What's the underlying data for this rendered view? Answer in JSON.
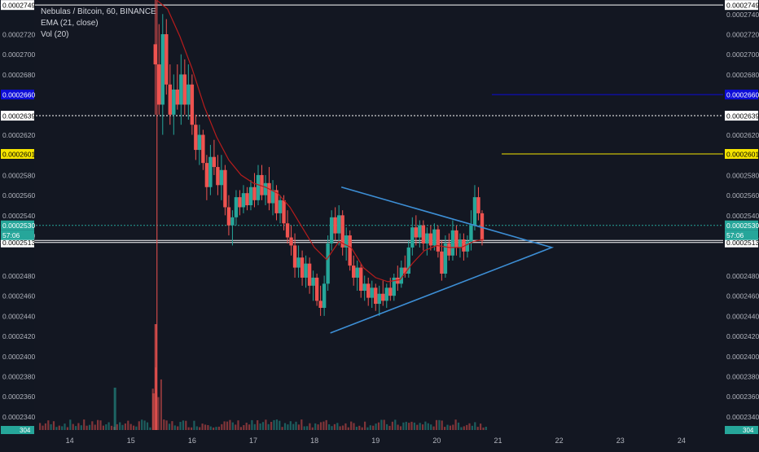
{
  "header": {
    "symbol_line": "Nebulas / Bitcoin, 60, BINANCE",
    "ema_line": "EMA (21, close)",
    "vol_line": "Vol (20)"
  },
  "colors": {
    "background": "#131722",
    "up": "#26a69a",
    "down": "#ef5350",
    "ema": "#b71c1c",
    "triangle": "#3d8fd6",
    "blue_level": "#0c0cd8",
    "yellow_level": "#f5e400",
    "last_price": "#ef0000",
    "teal_price": "#26a69a"
  },
  "chart_data": {
    "type": "candlestick",
    "title": "Nebulas / Bitcoin, 60, BINANCE",
    "ylim": [
      0.0002329,
      0.0002754
    ],
    "y_ticks_left": [
      "0.0002749",
      "0.0002720",
      "0.0002700",
      "0.0002680",
      "0.0002660",
      "0.0002639",
      "0.0002620",
      "0.0002601",
      "0.0002580",
      "0.0002560",
      "0.0002540",
      "0.0002530",
      "0.0002520",
      "0.0002515",
      "0.0002513",
      "0.0002480",
      "0.0002460",
      "0.0002440",
      "0.0002420",
      "0.0002400",
      "0.0002380",
      "0.0002360",
      "0.0002340"
    ],
    "y_ticks_right": [
      "0.0002749",
      "0.0002740",
      "0.0002720",
      "0.0002700",
      "0.0002680",
      "0.0002660",
      "0.0002639",
      "0.0002620",
      "0.0002601",
      "0.0002580",
      "0.0002560",
      "0.0002540",
      "0.0002530",
      "0.0002515",
      "0.0002513",
      "0.0002480",
      "0.0002460",
      "0.0002440",
      "0.0002420",
      "0.0002400",
      "0.0002380",
      "0.0002360",
      "0.0002340"
    ],
    "x_ticks": [
      {
        "label": "14",
        "day": 14
      },
      {
        "label": "15",
        "day": 15
      },
      {
        "label": "16",
        "day": 16
      },
      {
        "label": "17",
        "day": 17
      },
      {
        "label": "18",
        "day": 18
      },
      {
        "label": "19",
        "day": 19
      },
      {
        "label": "20",
        "day": 20
      },
      {
        "label": "21",
        "day": 21
      },
      {
        "label": "22",
        "day": 22
      },
      {
        "label": "23",
        "day": 23
      },
      {
        "label": "24",
        "day": 24
      }
    ],
    "x_range_days": [
      13.42,
      24.68
    ],
    "horizontal_levels": [
      {
        "price": 0.0002749,
        "label": "0.0002749",
        "style": "white-solid"
      },
      {
        "price": 0.000266,
        "label": "0.0002660",
        "style": "blue",
        "start_day": 20.9
      },
      {
        "price": 0.0002639,
        "label": "0.0002639",
        "style": "white-dotted"
      },
      {
        "price": 0.0002601,
        "label": "0.0002601",
        "style": "yellow",
        "start_day": 21.06
      },
      {
        "price": 0.000253,
        "label": "0.0002530",
        "style": "teal-dotted",
        "countdown": "57:06"
      },
      {
        "price": 0.0002515,
        "label": "0.0002515",
        "style": "last-price"
      },
      {
        "price": 0.0002513,
        "label": "0.0002513",
        "style": "white-solid"
      }
    ],
    "triangle": {
      "upper_start": {
        "day": 18.44,
        "price": 0.0002568
      },
      "lower_start": {
        "day": 18.26,
        "price": 0.0002423
      },
      "apex": {
        "day": 21.88,
        "price": 0.0002508
      }
    },
    "volume_label": "304",
    "ohlc": [
      {
        "d": 15.4,
        "o": 0.000271,
        "h": 0.000276,
        "l": 0.000264,
        "c": 0.000269
      },
      {
        "d": 15.46,
        "o": 0.000269,
        "h": 0.000273,
        "l": 0.000264,
        "c": 0.000265
      },
      {
        "d": 15.52,
        "o": 0.000265,
        "h": 0.000274,
        "l": 0.000262,
        "c": 0.000272
      },
      {
        "d": 15.58,
        "o": 0.000272,
        "h": 0.0002735,
        "l": 0.000266,
        "c": 0.000267
      },
      {
        "d": 15.64,
        "o": 0.000267,
        "h": 0.000269,
        "l": 0.000263,
        "c": 0.000264
      },
      {
        "d": 15.7,
        "o": 0.000264,
        "h": 0.000268,
        "l": 0.000262,
        "c": 0.0002665
      },
      {
        "d": 15.76,
        "o": 0.0002665,
        "h": 0.000269,
        "l": 0.0002645,
        "c": 0.000265
      },
      {
        "d": 15.82,
        "o": 0.000265,
        "h": 0.00027,
        "l": 0.000263,
        "c": 0.000268
      },
      {
        "d": 15.88,
        "o": 0.000268,
        "h": 0.0002695,
        "l": 0.000264,
        "c": 0.000265
      },
      {
        "d": 15.94,
        "o": 0.000265,
        "h": 0.000269,
        "l": 0.0002635,
        "c": 0.000267
      },
      {
        "d": 16.0,
        "o": 0.000267,
        "h": 0.000268,
        "l": 0.000262,
        "c": 0.000263
      },
      {
        "d": 16.06,
        "o": 0.000263,
        "h": 0.000264,
        "l": 0.0002595,
        "c": 0.0002605
      },
      {
        "d": 16.12,
        "o": 0.0002605,
        "h": 0.000263,
        "l": 0.000259,
        "c": 0.000262
      },
      {
        "d": 16.18,
        "o": 0.000262,
        "h": 0.0002625,
        "l": 0.0002585,
        "c": 0.0002592
      },
      {
        "d": 16.24,
        "o": 0.0002592,
        "h": 0.00026,
        "l": 0.0002555,
        "c": 0.0002568
      },
      {
        "d": 16.3,
        "o": 0.0002568,
        "h": 0.000261,
        "l": 0.000256,
        "c": 0.0002598
      },
      {
        "d": 16.36,
        "o": 0.0002598,
        "h": 0.0002615,
        "l": 0.000258,
        "c": 0.0002588
      },
      {
        "d": 16.42,
        "o": 0.0002588,
        "h": 0.00026,
        "l": 0.000256,
        "c": 0.000257
      },
      {
        "d": 16.48,
        "o": 0.000257,
        "h": 0.00026,
        "l": 0.0002555,
        "c": 0.0002585
      },
      {
        "d": 16.54,
        "o": 0.0002585,
        "h": 0.000259,
        "l": 0.000254,
        "c": 0.0002548
      },
      {
        "d": 16.6,
        "o": 0.0002548,
        "h": 0.000256,
        "l": 0.000252,
        "c": 0.000253
      },
      {
        "d": 16.66,
        "o": 0.000253,
        "h": 0.0002545,
        "l": 0.000251,
        "c": 0.0002538
      },
      {
        "d": 16.72,
        "o": 0.0002538,
        "h": 0.0002565,
        "l": 0.000253,
        "c": 0.0002558
      },
      {
        "d": 16.78,
        "o": 0.0002558,
        "h": 0.0002565,
        "l": 0.000254,
        "c": 0.0002548
      },
      {
        "d": 16.84,
        "o": 0.0002548,
        "h": 0.000257,
        "l": 0.0002542,
        "c": 0.0002562
      },
      {
        "d": 16.9,
        "o": 0.0002562,
        "h": 0.0002568,
        "l": 0.0002545,
        "c": 0.000255
      },
      {
        "d": 16.96,
        "o": 0.000255,
        "h": 0.0002575,
        "l": 0.0002545,
        "c": 0.0002568
      },
      {
        "d": 17.02,
        "o": 0.0002568,
        "h": 0.0002582,
        "l": 0.0002548,
        "c": 0.0002555
      },
      {
        "d": 17.08,
        "o": 0.0002555,
        "h": 0.000259,
        "l": 0.000255,
        "c": 0.000258
      },
      {
        "d": 17.14,
        "o": 0.000258,
        "h": 0.000259,
        "l": 0.0002555,
        "c": 0.000256
      },
      {
        "d": 17.2,
        "o": 0.000256,
        "h": 0.000258,
        "l": 0.000255,
        "c": 0.0002572
      },
      {
        "d": 17.26,
        "o": 0.0002572,
        "h": 0.0002588,
        "l": 0.0002545,
        "c": 0.0002552
      },
      {
        "d": 17.32,
        "o": 0.0002552,
        "h": 0.0002575,
        "l": 0.000254,
        "c": 0.0002565
      },
      {
        "d": 17.38,
        "o": 0.0002565,
        "h": 0.000257,
        "l": 0.0002535,
        "c": 0.0002542
      },
      {
        "d": 17.44,
        "o": 0.0002542,
        "h": 0.000256,
        "l": 0.0002532,
        "c": 0.0002555
      },
      {
        "d": 17.5,
        "o": 0.0002555,
        "h": 0.000256,
        "l": 0.0002525,
        "c": 0.0002532
      },
      {
        "d": 17.56,
        "o": 0.0002532,
        "h": 0.0002545,
        "l": 0.0002512,
        "c": 0.0002518
      },
      {
        "d": 17.62,
        "o": 0.0002518,
        "h": 0.000253,
        "l": 0.00025,
        "c": 0.000251
      },
      {
        "d": 17.68,
        "o": 0.000251,
        "h": 0.0002522,
        "l": 0.0002478,
        "c": 0.0002488
      },
      {
        "d": 17.74,
        "o": 0.0002488,
        "h": 0.000251,
        "l": 0.0002478,
        "c": 0.0002498
      },
      {
        "d": 17.8,
        "o": 0.0002498,
        "h": 0.0002505,
        "l": 0.000247,
        "c": 0.0002478
      },
      {
        "d": 17.86,
        "o": 0.0002478,
        "h": 0.00025,
        "l": 0.0002468,
        "c": 0.0002492
      },
      {
        "d": 17.92,
        "o": 0.0002492,
        "h": 0.0002498,
        "l": 0.0002462,
        "c": 0.000247
      },
      {
        "d": 17.98,
        "o": 0.000247,
        "h": 0.0002485,
        "l": 0.0002455,
        "c": 0.0002478
      },
      {
        "d": 18.04,
        "o": 0.0002478,
        "h": 0.0002482,
        "l": 0.000245,
        "c": 0.0002455
      },
      {
        "d": 18.1,
        "o": 0.0002455,
        "h": 0.000247,
        "l": 0.000244,
        "c": 0.0002448
      },
      {
        "d": 18.16,
        "o": 0.0002448,
        "h": 0.000248,
        "l": 0.000244,
        "c": 0.0002472
      },
      {
        "d": 18.22,
        "o": 0.0002472,
        "h": 0.000252,
        "l": 0.0002465,
        "c": 0.0002512
      },
      {
        "d": 18.28,
        "o": 0.0002512,
        "h": 0.0002545,
        "l": 0.0002505,
        "c": 0.0002538
      },
      {
        "d": 18.34,
        "o": 0.0002538,
        "h": 0.0002548,
        "l": 0.0002515,
        "c": 0.0002522
      },
      {
        "d": 18.4,
        "o": 0.0002522,
        "h": 0.000255,
        "l": 0.000251,
        "c": 0.000254
      },
      {
        "d": 18.46,
        "o": 0.000254,
        "h": 0.0002545,
        "l": 0.00025,
        "c": 0.0002508
      },
      {
        "d": 18.52,
        "o": 0.0002508,
        "h": 0.0002528,
        "l": 0.0002495,
        "c": 0.000252
      },
      {
        "d": 18.58,
        "o": 0.000252,
        "h": 0.0002525,
        "l": 0.0002485,
        "c": 0.000249
      },
      {
        "d": 18.64,
        "o": 0.000249,
        "h": 0.00025,
        "l": 0.000247,
        "c": 0.0002478
      },
      {
        "d": 18.7,
        "o": 0.0002478,
        "h": 0.0002495,
        "l": 0.0002465,
        "c": 0.0002488
      },
      {
        "d": 18.76,
        "o": 0.0002488,
        "h": 0.0002492,
        "l": 0.0002458,
        "c": 0.0002465
      },
      {
        "d": 18.82,
        "o": 0.0002465,
        "h": 0.000248,
        "l": 0.0002455,
        "c": 0.0002472
      },
      {
        "d": 18.88,
        "o": 0.0002472,
        "h": 0.0002478,
        "l": 0.000245,
        "c": 0.0002458
      },
      {
        "d": 18.94,
        "o": 0.0002458,
        "h": 0.0002475,
        "l": 0.0002448,
        "c": 0.0002468
      },
      {
        "d": 19.0,
        "o": 0.0002468,
        "h": 0.0002472,
        "l": 0.0002445,
        "c": 0.0002452
      },
      {
        "d": 19.06,
        "o": 0.0002452,
        "h": 0.000247,
        "l": 0.000244,
        "c": 0.0002462
      },
      {
        "d": 19.12,
        "o": 0.0002462,
        "h": 0.0002475,
        "l": 0.000245,
        "c": 0.0002455
      },
      {
        "d": 19.18,
        "o": 0.0002455,
        "h": 0.0002472,
        "l": 0.0002448,
        "c": 0.0002468
      },
      {
        "d": 19.24,
        "o": 0.0002468,
        "h": 0.0002478,
        "l": 0.0002455,
        "c": 0.000246
      },
      {
        "d": 19.3,
        "o": 0.000246,
        "h": 0.0002482,
        "l": 0.0002455,
        "c": 0.0002478
      },
      {
        "d": 19.36,
        "o": 0.0002478,
        "h": 0.000249,
        "l": 0.0002465,
        "c": 0.0002472
      },
      {
        "d": 19.42,
        "o": 0.0002472,
        "h": 0.0002495,
        "l": 0.0002468,
        "c": 0.0002488
      },
      {
        "d": 19.48,
        "o": 0.0002488,
        "h": 0.00025,
        "l": 0.0002478,
        "c": 0.0002482
      },
      {
        "d": 19.54,
        "o": 0.0002482,
        "h": 0.0002515,
        "l": 0.0002478,
        "c": 0.0002508
      },
      {
        "d": 19.6,
        "o": 0.0002508,
        "h": 0.0002538,
        "l": 0.00025,
        "c": 0.0002528
      },
      {
        "d": 19.66,
        "o": 0.0002528,
        "h": 0.000254,
        "l": 0.000251,
        "c": 0.0002518
      },
      {
        "d": 19.72,
        "o": 0.0002518,
        "h": 0.0002535,
        "l": 0.0002508,
        "c": 0.000253
      },
      {
        "d": 19.78,
        "o": 0.000253,
        "h": 0.0002535,
        "l": 0.0002505,
        "c": 0.0002512
      },
      {
        "d": 19.84,
        "o": 0.0002512,
        "h": 0.0002528,
        "l": 0.00025,
        "c": 0.0002522
      },
      {
        "d": 19.9,
        "o": 0.0002522,
        "h": 0.000253,
        "l": 0.0002505,
        "c": 0.000251
      },
      {
        "d": 19.96,
        "o": 0.000251,
        "h": 0.0002532,
        "l": 0.0002505,
        "c": 0.0002526
      },
      {
        "d": 20.02,
        "o": 0.0002526,
        "h": 0.000253,
        "l": 0.0002498,
        "c": 0.0002504
      },
      {
        "d": 20.08,
        "o": 0.0002504,
        "h": 0.0002515,
        "l": 0.0002475,
        "c": 0.0002482
      },
      {
        "d": 20.14,
        "o": 0.0002482,
        "h": 0.000252,
        "l": 0.0002478,
        "c": 0.0002512
      },
      {
        "d": 20.2,
        "o": 0.0002512,
        "h": 0.0002522,
        "l": 0.0002495,
        "c": 0.00025
      },
      {
        "d": 20.26,
        "o": 0.00025,
        "h": 0.0002535,
        "l": 0.0002495,
        "c": 0.0002525
      },
      {
        "d": 20.32,
        "o": 0.0002525,
        "h": 0.000253,
        "l": 0.00025,
        "c": 0.0002508
      },
      {
        "d": 20.38,
        "o": 0.0002508,
        "h": 0.0002522,
        "l": 0.0002498,
        "c": 0.0002516
      },
      {
        "d": 20.44,
        "o": 0.0002516,
        "h": 0.0002522,
        "l": 0.0002495,
        "c": 0.0002504
      },
      {
        "d": 20.5,
        "o": 0.0002504,
        "h": 0.000252,
        "l": 0.0002498,
        "c": 0.0002514
      },
      {
        "d": 20.56,
        "o": 0.0002514,
        "h": 0.0002545,
        "l": 0.0002505,
        "c": 0.000253
      },
      {
        "d": 20.62,
        "o": 0.000253,
        "h": 0.000257,
        "l": 0.0002525,
        "c": 0.0002558
      },
      {
        "d": 20.68,
        "o": 0.0002558,
        "h": 0.0002568,
        "l": 0.0002535,
        "c": 0.0002542
      },
      {
        "d": 20.74,
        "o": 0.0002542,
        "h": 0.0002545,
        "l": 0.000251,
        "c": 0.0002515
      }
    ],
    "ema21": [
      [
        15.4,
        0.0002755
      ],
      [
        15.6,
        0.0002745
      ],
      [
        15.8,
        0.0002718
      ],
      [
        16.0,
        0.0002686
      ],
      [
        16.2,
        0.0002648
      ],
      [
        16.4,
        0.0002618
      ],
      [
        16.6,
        0.0002595
      ],
      [
        16.8,
        0.000258
      ],
      [
        17.0,
        0.0002572
      ],
      [
        17.2,
        0.0002568
      ],
      [
        17.4,
        0.0002562
      ],
      [
        17.6,
        0.0002548
      ],
      [
        17.8,
        0.0002528
      ],
      [
        18.0,
        0.0002508
      ],
      [
        18.2,
        0.0002496
      ],
      [
        18.4,
        0.0002514
      ],
      [
        18.6,
        0.0002508
      ],
      [
        18.8,
        0.0002488
      ],
      [
        19.0,
        0.0002478
      ],
      [
        19.2,
        0.0002474
      ],
      [
        19.4,
        0.0002476
      ],
      [
        19.6,
        0.0002492
      ],
      [
        19.8,
        0.0002505
      ],
      [
        20.0,
        0.000251
      ],
      [
        20.2,
        0.0002508
      ],
      [
        20.4,
        0.0002508
      ],
      [
        20.6,
        0.0002514
      ],
      [
        20.76,
        0.0002516
      ]
    ]
  }
}
